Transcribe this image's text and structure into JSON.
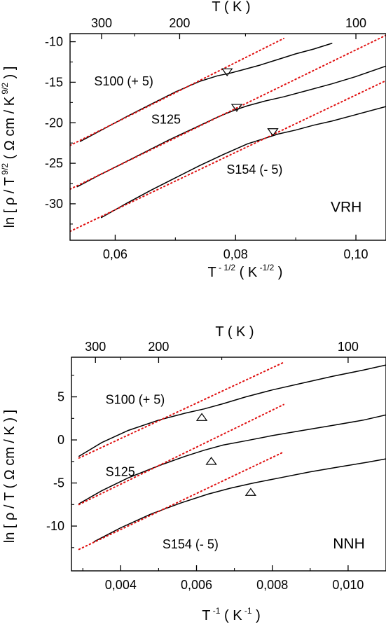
{
  "chart_data": [
    {
      "type": "line",
      "panel": "VRH",
      "xlabel_base": "T",
      "xlabel_exp": " - 1/2",
      "xlabel_unit_open": " ( K",
      "xlabel_unit_exp": " -1/2",
      "xlabel_unit_close": " )",
      "ylabel_pre": "ln [ ρ / T",
      "ylabel_exp": " 9/2",
      "ylabel_mid": " ( Ω cm / K",
      "ylabel_exp2": " 9/2",
      "ylabel_post": " ) ]",
      "top_label": "T ( K )",
      "xlim": [
        0.0525,
        0.105
      ],
      "ylim": [
        -34.5,
        -9.0
      ],
      "xticks": [
        0.06,
        0.08,
        0.1
      ],
      "xtick_labels": [
        "0,06",
        "0,08",
        "0,10"
      ],
      "yticks": [
        -10,
        -15,
        -20,
        -25,
        -30
      ],
      "ytick_labels": [
        "-10",
        "-15",
        "-20",
        "-25",
        "-30"
      ],
      "top_ticks": [
        300,
        200,
        100
      ],
      "top_tick_labels": [
        "300",
        "200",
        "100"
      ],
      "series": [
        {
          "name": "S100 (+ 5)",
          "color": "#000000",
          "x": [
            0.0542,
            0.058,
            0.062,
            0.066,
            0.07,
            0.074,
            0.077,
            0.079,
            0.081,
            0.084,
            0.087,
            0.09,
            0.093,
            0.096
          ],
          "y": [
            -22.3,
            -20.8,
            -19.2,
            -17.7,
            -16.2,
            -14.9,
            -14.2,
            -13.9,
            -13.5,
            -12.9,
            -12.2,
            -11.5,
            -10.9,
            -10.2
          ]
        },
        {
          "name": "S125",
          "color": "#000000",
          "x": [
            0.0537,
            0.057,
            0.061,
            0.065,
            0.069,
            0.073,
            0.077,
            0.08,
            0.082,
            0.085,
            0.088,
            0.092,
            0.096,
            0.1,
            0.105
          ],
          "y": [
            -27.9,
            -26.6,
            -25.1,
            -23.6,
            -22.1,
            -20.7,
            -19.3,
            -18.4,
            -17.9,
            -17.3,
            -16.8,
            -16.0,
            -15.2,
            -14.3,
            -13.0
          ]
        },
        {
          "name": "S154 (- 5)",
          "color": "#000000",
          "x": [
            0.0577,
            0.062,
            0.066,
            0.07,
            0.074,
            0.078,
            0.082,
            0.085,
            0.087,
            0.09,
            0.093,
            0.096,
            0.1,
            0.105
          ],
          "y": [
            -31.7,
            -29.9,
            -28.3,
            -26.8,
            -25.3,
            -23.9,
            -22.6,
            -21.9,
            -21.4,
            -20.9,
            -20.3,
            -19.8,
            -19.0,
            -18.0
          ]
        },
        {
          "name": "",
          "style": "dotted",
          "color": "#e01010",
          "x": [
            0.0525,
            0.088
          ],
          "y": [
            -22.8,
            -9.6
          ]
        },
        {
          "name": "",
          "style": "dotted",
          "color": "#e01010",
          "x": [
            0.0525,
            0.105
          ],
          "y": [
            -28.2,
            -9.2
          ]
        },
        {
          "name": "",
          "style": "dotted",
          "color": "#e01010",
          "x": [
            0.0525,
            0.105
          ],
          "y": [
            -33.4,
            -14.8
          ]
        }
      ],
      "markers": [
        {
          "shape": "triangle-down",
          "x": 0.0786,
          "y": -13.7
        },
        {
          "shape": "triangle-down",
          "x": 0.0802,
          "y": -18.1
        },
        {
          "shape": "triangle-down",
          "x": 0.0862,
          "y": -21.1
        }
      ],
      "annotations": [
        {
          "text": "S100 (+ 5)",
          "x": 0.0565,
          "y": -15.4
        },
        {
          "text": "S125",
          "x": 0.066,
          "y": -20.1
        },
        {
          "text": "S154 (- 5)",
          "x": 0.0785,
          "y": -26.3
        },
        {
          "text": "VRH",
          "x": 0.0958,
          "y": -31.0
        }
      ]
    },
    {
      "type": "line",
      "panel": "NNH",
      "xlabel_base": "T",
      "xlabel_exp": " -1",
      "xlabel_unit_open": " ( K",
      "xlabel_unit_exp": " -1",
      "xlabel_unit_close": " )",
      "ylabel_text": "ln [ ρ / T ( Ω cm / K ) ]",
      "top_label": "T ( K )",
      "xlim": [
        0.0027,
        0.011
      ],
      "ylim": [
        -15.2,
        9.6
      ],
      "xticks": [
        0.004,
        0.006,
        0.008,
        0.01
      ],
      "xtick_labels": [
        "0,004",
        "0,006",
        "0,008",
        "0,010"
      ],
      "yticks": [
        5,
        0,
        -5,
        -10
      ],
      "ytick_labels": [
        "5",
        "0",
        "-5",
        "-10"
      ],
      "top_ticks": [
        300,
        200,
        100
      ],
      "top_tick_labels": [
        "300",
        "200",
        "100"
      ],
      "series": [
        {
          "name": "S100 (+ 5)",
          "color": "#000000",
          "x": [
            0.0029,
            0.0035,
            0.0042,
            0.005,
            0.0057,
            0.0062,
            0.0067,
            0.0073,
            0.008,
            0.0088,
            0.0096,
            0.0104,
            0.011
          ],
          "y": [
            -1.9,
            -0.3,
            1.1,
            2.3,
            3.1,
            3.6,
            4.2,
            5.0,
            5.8,
            6.6,
            7.4,
            8.1,
            8.7
          ]
        },
        {
          "name": "S125",
          "color": "#000000",
          "x": [
            0.0029,
            0.0035,
            0.0042,
            0.005,
            0.0057,
            0.0062,
            0.0067,
            0.0073,
            0.008,
            0.0088,
            0.0096,
            0.0104,
            0.011
          ],
          "y": [
            -7.4,
            -5.9,
            -4.4,
            -3.0,
            -1.9,
            -1.2,
            -0.6,
            -0.1,
            0.5,
            1.1,
            1.7,
            2.3,
            2.9
          ]
        },
        {
          "name": "S154 (- 5)",
          "color": "#000000",
          "x": [
            0.0033,
            0.004,
            0.0048,
            0.0056,
            0.0063,
            0.0069,
            0.0075,
            0.0082,
            0.009,
            0.0098,
            0.0105,
            0.011
          ],
          "y": [
            -11.8,
            -10.2,
            -8.6,
            -7.3,
            -6.3,
            -5.6,
            -5.0,
            -4.4,
            -3.7,
            -3.1,
            -2.6,
            -2.2
          ]
        },
        {
          "name": "",
          "style": "dotted",
          "color": "#e01010",
          "x": [
            0.0029,
            0.0083
          ],
          "y": [
            -2.1,
            9.0
          ]
        },
        {
          "name": "",
          "style": "dotted",
          "color": "#e01010",
          "x": [
            0.0029,
            0.0083
          ],
          "y": [
            -7.5,
            4.1
          ]
        },
        {
          "name": "",
          "style": "dotted",
          "color": "#e01010",
          "x": [
            0.0029,
            0.0083
          ],
          "y": [
            -12.7,
            -1.4
          ]
        }
      ],
      "markers": [
        {
          "shape": "triangle-up",
          "x": 0.00614,
          "y": 2.6
        },
        {
          "shape": "triangle-up",
          "x": 0.00639,
          "y": -2.5
        },
        {
          "shape": "triangle-up",
          "x": 0.00743,
          "y": -6.1
        }
      ],
      "annotations": [
        {
          "text": "S100 (+ 5)",
          "x": 0.0036,
          "y": 4.2
        },
        {
          "text": "S125",
          "x": 0.0036,
          "y": -4.2
        },
        {
          "text": "S154 (- 5)",
          "x": 0.0051,
          "y": -12.6
        },
        {
          "text": "NNH",
          "x": 0.0096,
          "y": -12.6
        }
      ]
    }
  ]
}
